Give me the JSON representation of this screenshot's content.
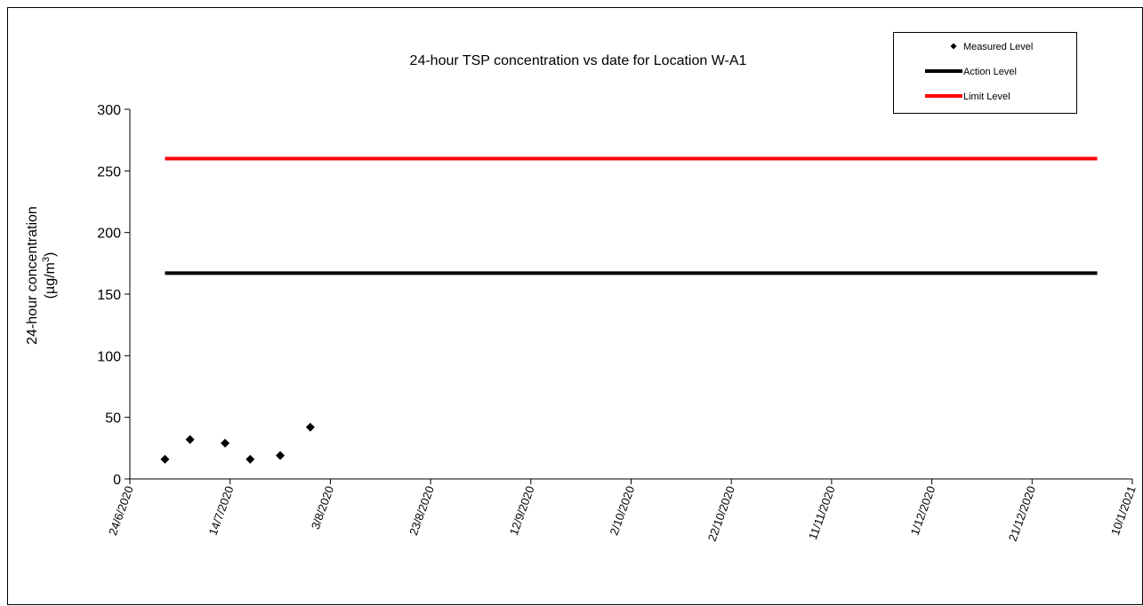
{
  "chart_data": {
    "type": "scatter",
    "title": "24-hour TSP concentration vs date for Location W-A1",
    "ylabel_line1": "24-hour concentration",
    "ylabel_line2_prefix": "(µg/m",
    "ylabel_line2_sup": "3",
    "ylabel_line2_suffix": ")",
    "xlabel": "",
    "ylim": [
      0,
      300
    ],
    "yticks": [
      0,
      50,
      100,
      150,
      200,
      250,
      300
    ],
    "xlim": [
      "2020-06-24",
      "2021-01-10"
    ],
    "xticks": [
      "24/6/2020",
      "14/7/2020",
      "3/8/2020",
      "23/8/2020",
      "12/9/2020",
      "2/10/2020",
      "22/10/2020",
      "11/11/2020",
      "1/12/2020",
      "21/12/2020",
      "10/1/2021"
    ],
    "legend_position": "top-right",
    "series": [
      {
        "name": "Measured Level",
        "kind": "markers",
        "color": "#000000",
        "marker": "diamond",
        "points": [
          {
            "x": "2020-07-01",
            "y": 16
          },
          {
            "x": "2020-07-06",
            "y": 32
          },
          {
            "x": "2020-07-13",
            "y": 29
          },
          {
            "x": "2020-07-18",
            "y": 16
          },
          {
            "x": "2020-07-24",
            "y": 19
          },
          {
            "x": "2020-07-30",
            "y": 42
          }
        ]
      },
      {
        "name": "Action Level",
        "kind": "line",
        "color": "#000000",
        "points": [
          {
            "x": "2020-07-01",
            "y": 167
          },
          {
            "x": "2021-01-03",
            "y": 167
          }
        ]
      },
      {
        "name": "Limit Level",
        "kind": "line",
        "color": "#ff0000",
        "points": [
          {
            "x": "2020-07-01",
            "y": 260
          },
          {
            "x": "2021-01-03",
            "y": 260
          }
        ]
      }
    ]
  }
}
